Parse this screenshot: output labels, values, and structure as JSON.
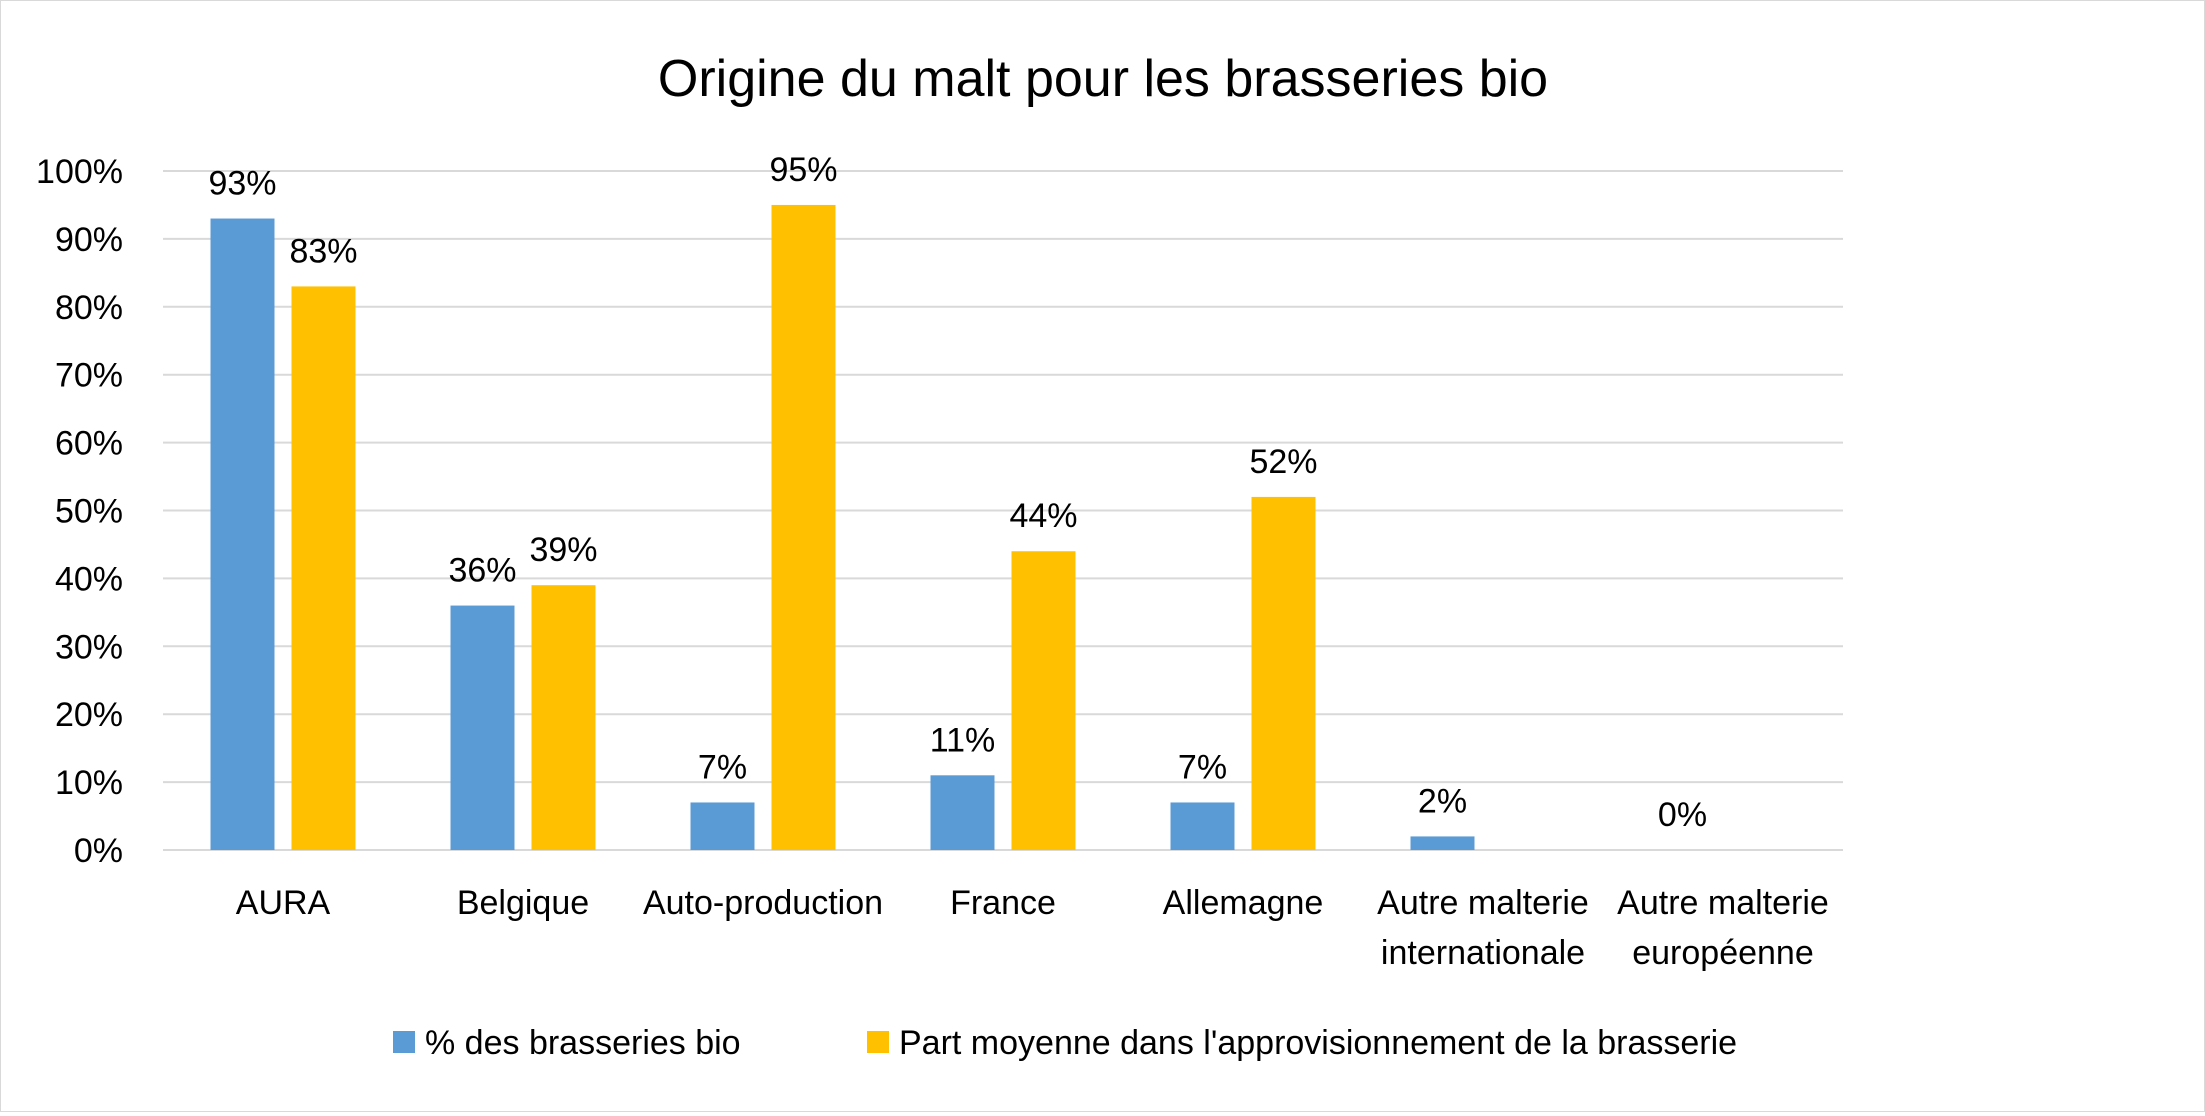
{
  "chart_data": {
    "type": "bar",
    "title": "Origine du malt pour les brasseries bio",
    "xlabel": "",
    "ylabel": "",
    "ylim": [
      0,
      1
    ],
    "y_ticks": [
      "0%",
      "10%",
      "20%",
      "30%",
      "40%",
      "50%",
      "60%",
      "70%",
      "80%",
      "90%",
      "100%"
    ],
    "categories": [
      [
        "AURA"
      ],
      [
        "Belgique"
      ],
      [
        "Auto-production"
      ],
      [
        "France"
      ],
      [
        "Allemagne"
      ],
      [
        "Autre malterie",
        "internationale"
      ],
      [
        "Autre malterie",
        "européenne"
      ]
    ],
    "series": [
      {
        "name": "% des brasseries bio",
        "color": "#5b9bd5",
        "values": [
          0.93,
          0.36,
          0.07,
          0.11,
          0.07,
          0.02,
          0.0
        ],
        "labels": [
          "93%",
          "36%",
          "7%",
          "11%",
          "7%",
          "2%",
          "0%"
        ]
      },
      {
        "name": "Part moyenne dans l'approvisionnement de la brasserie",
        "color": "#ffc000",
        "values": [
          0.83,
          0.39,
          0.95,
          0.44,
          0.52,
          null,
          null
        ],
        "labels": [
          "83%",
          "39%",
          "95%",
          "44%",
          "52%",
          null,
          null
        ]
      }
    ],
    "grid": true,
    "legend_position": "bottom",
    "gridline_color": "#d9d9d9"
  }
}
